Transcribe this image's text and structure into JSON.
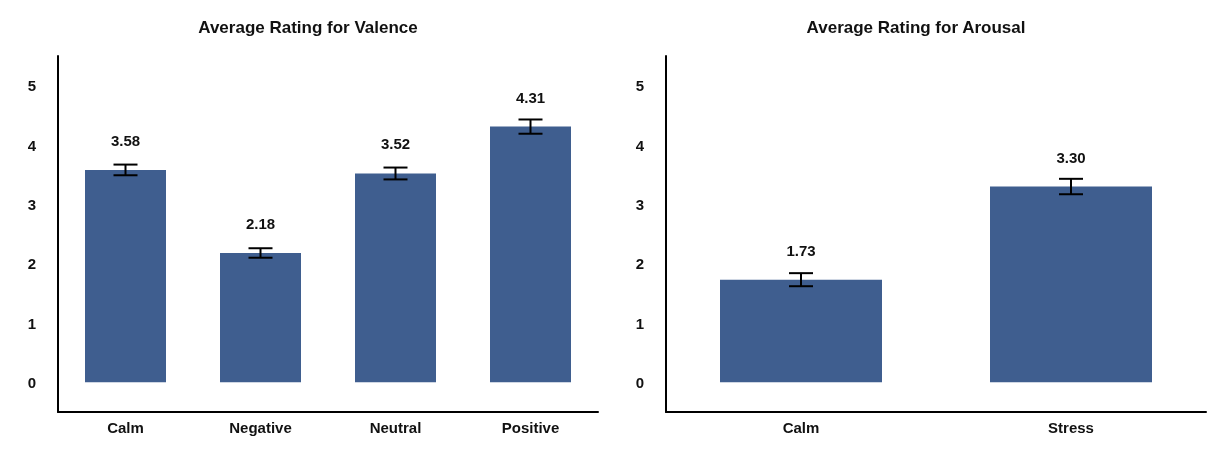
{
  "chart_data": [
    {
      "type": "bar",
      "title": "Average Rating for Valence",
      "categories": [
        "Calm",
        "Negative",
        "Neutral",
        "Positive"
      ],
      "values": [
        3.58,
        2.18,
        3.52,
        4.31
      ],
      "value_labels": [
        "3.58",
        "2.18",
        "3.52",
        "4.31"
      ],
      "errors": [
        0.09,
        0.08,
        0.1,
        0.12
      ],
      "color": "#3f5e8f",
      "ylim": [
        -0.5,
        5.5
      ],
      "yticks": [
        0,
        1,
        2,
        3,
        4,
        5
      ]
    },
    {
      "type": "bar",
      "title": "Average Rating for Arousal",
      "categories": [
        "Calm",
        "Stress"
      ],
      "values": [
        1.73,
        3.3
      ],
      "value_labels": [
        "1.73",
        "3.30"
      ],
      "errors": [
        0.11,
        0.13
      ],
      "color": "#3f5e8f",
      "ylim": [
        -0.5,
        5.5
      ],
      "yticks": [
        0,
        1,
        2,
        3,
        4,
        5
      ]
    }
  ]
}
